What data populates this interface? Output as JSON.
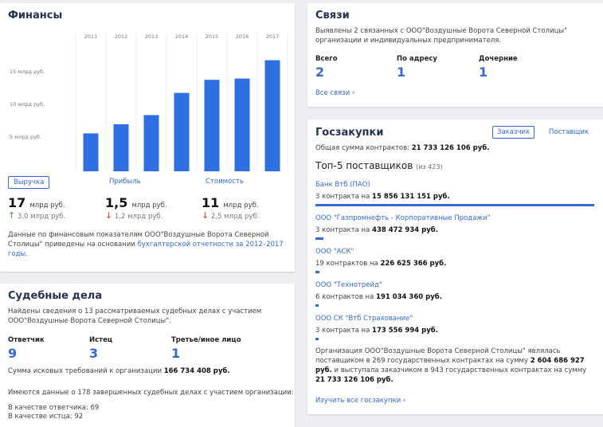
{
  "finances": {
    "title": "Финансы",
    "chart": {
      "type": "bar",
      "categories": [
        "2011",
        "2012",
        "2013",
        "2014",
        "2015",
        "2016",
        "2017"
      ],
      "values": [
        5.8,
        7.2,
        8.6,
        12,
        14,
        14.2,
        17
      ],
      "color": "#2f6fe4",
      "ylim": [
        0,
        20
      ],
      "yticks": [
        {
          "value": 5,
          "label": "5 млрд руб."
        },
        {
          "value": 10,
          "label": "10 млрд руб."
        },
        {
          "value": 15,
          "label": "15 млрд руб."
        }
      ]
    },
    "tabs": [
      "Выручка",
      "Прибыль",
      "Стоимость"
    ],
    "metrics": [
      {
        "value": "17",
        "unit": "млрд руб.",
        "prev": "3,0 млрд руб."
      },
      {
        "value": "1,5",
        "unit": "млрд руб.",
        "prev": "1,2 млрд руб."
      },
      {
        "value": "11",
        "unit": "млрд руб.",
        "prev": "2,5 млрд руб."
      }
    ],
    "note": "Данные по финансовым показателям ООО\"Воздушные Ворота Северной Столицы\" приведены на основании ",
    "note_link": "бухгалтерской отчетности за 2012–2017 годы."
  },
  "court": {
    "title": "Судебные дела",
    "text": "Найдены сведения о 13 рассматриваемых судебных делах с участием ООО\"Воздушные Ворота Северной Столицы\".",
    "stats": [
      {
        "label": "Ответчик",
        "value": "9"
      },
      {
        "label": "Истец",
        "value": "3"
      },
      {
        "label": "Третье/иное лицо",
        "value": "1"
      }
    ],
    "claim_label": "Сумма исковых требований к организации ",
    "claim_value": "166 734 408 руб.",
    "completed": "Имеются данные о 178 завершенных судебных делах с участием организации:",
    "roles": [
      "В качестве ответчика: 69",
      "В качестве истца: 92"
    ]
  },
  "links": {
    "title": "Связи",
    "text": "Выявлены 2 связанных с ООО\"Воздушные Ворота Северной Столицы\" организации и индивидуальных предпринимателя.",
    "stats": [
      {
        "label": "Всего",
        "value": "2"
      },
      {
        "label": "По адресу",
        "value": "1"
      },
      {
        "label": "Дочерние",
        "value": "1"
      }
    ],
    "more": "Все связи"
  },
  "procurement": {
    "title": "Госзакупки",
    "tabs": [
      "Заказчик",
      "Поставщик"
    ],
    "total_label": "Общая сумма контрактов: ",
    "total": "21 733 126 106 руб.",
    "top_title": "Топ-5 поставщиков",
    "top_count": "(из 423)",
    "suppliers": [
      {
        "name": "Банк Втб (ПАО)",
        "count": "3 контракта на ",
        "amount": "15 856 131 151 руб."
      },
      {
        "name": "ООО \"Газпромнефть - Корпоративные Продажи\"",
        "count": "3 контракта на ",
        "amount": "438 472 934 руб."
      },
      {
        "name": "ООО \"АСК\"",
        "count": "19 контрактов на ",
        "amount": "226 625 366 руб."
      },
      {
        "name": "ООО \"Технотрейд\"",
        "count": "6 контрактов на ",
        "amount": "191 034 360 руб."
      },
      {
        "name": "ООО СК \"Втб Страхование\"",
        "count": "3 контракта на ",
        "amount": "173 556 994 руб."
      }
    ],
    "summary": [
      "Организация ООО\"Воздушные Ворота Северной Столицы\" являлась поставщиком в 269 государственных контрактах на сумму ",
      "2 604 686 927 руб.",
      " и выступала заказчиком в 943 государственных контрактах на сумму ",
      "21 733 126 106 руб."
    ],
    "more": "Изучить все госзакупки"
  }
}
